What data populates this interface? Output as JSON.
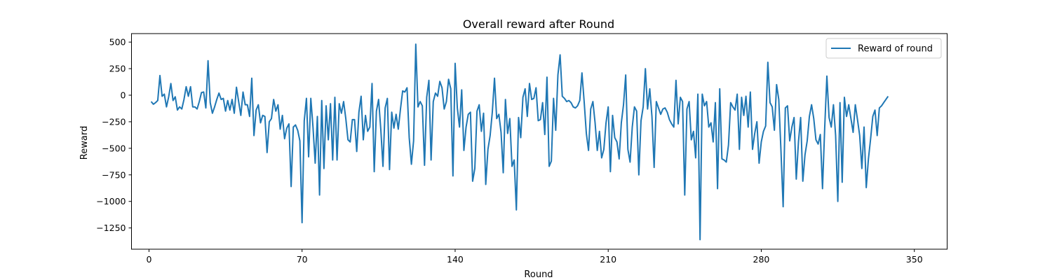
{
  "chart_data": {
    "type": "line",
    "title": "Overall reward after Round",
    "xlabel": "Round",
    "ylabel": "Reward",
    "xlim": [
      -8,
      365
    ],
    "ylim": [
      -1450,
      580
    ],
    "xticks": [
      0,
      70,
      140,
      210,
      280,
      350
    ],
    "yticks": [
      500,
      250,
      0,
      -250,
      -500,
      -750,
      -1000,
      -1250
    ],
    "ytick_labels": [
      "500",
      "250",
      "0",
      "−250",
      "−500",
      "−750",
      "−1000",
      "−1250"
    ],
    "legend": {
      "position": "upper-right",
      "entries": [
        "Reward of round"
      ]
    },
    "grid": false,
    "series": [
      {
        "name": "Reward of round",
        "color": "#1f77b4",
        "x_start": 1,
        "values": [
          -60,
          -85,
          -70,
          -50,
          185,
          -10,
          10,
          -110,
          -15,
          110,
          -50,
          -15,
          -140,
          -110,
          -130,
          -40,
          80,
          -10,
          80,
          -110,
          -110,
          -130,
          -60,
          25,
          30,
          -120,
          325,
          -70,
          -170,
          -110,
          -40,
          20,
          -40,
          -30,
          -150,
          -50,
          -140,
          -40,
          -170,
          75,
          -60,
          -190,
          30,
          -90,
          -90,
          -200,
          160,
          -380,
          -140,
          -90,
          -260,
          -190,
          -200,
          -540,
          -250,
          -220,
          -40,
          -150,
          -90,
          -320,
          -190,
          -410,
          -310,
          -270,
          -860,
          -300,
          -280,
          -330,
          -430,
          -1200,
          -240,
          -30,
          -580,
          -30,
          -300,
          -640,
          -200,
          -940,
          -50,
          -690,
          -100,
          -420,
          -80,
          -610,
          -20,
          -610,
          -80,
          -170,
          -60,
          -220,
          -420,
          -440,
          -230,
          -230,
          -530,
          -160,
          -10,
          -420,
          -190,
          -340,
          -300,
          110,
          -720,
          -150,
          -40,
          -320,
          -670,
          -120,
          -30,
          -700,
          -160,
          -310,
          -180,
          -320,
          -130,
          40,
          30,
          70,
          -400,
          -650,
          -430,
          480,
          -110,
          -60,
          -100,
          -660,
          -20,
          140,
          -610,
          -60,
          20,
          -10,
          130,
          70,
          -130,
          -60,
          150,
          60,
          -760,
          300,
          -120,
          -300,
          50,
          -520,
          -300,
          -180,
          -160,
          -810,
          -690,
          -150,
          -90,
          -340,
          -170,
          -840,
          -510,
          -380,
          -160,
          160,
          -220,
          -180,
          -350,
          -730,
          -40,
          -360,
          -220,
          -670,
          -610,
          -1080,
          -210,
          -400,
          -20,
          60,
          -200,
          110,
          -40,
          -30,
          70,
          -240,
          -230,
          -70,
          -370,
          170,
          -670,
          -620,
          -30,
          -330,
          190,
          380,
          -10,
          -30,
          -60,
          -50,
          -70,
          -110,
          -120,
          -100,
          -50,
          210,
          -60,
          -360,
          -520,
          -130,
          -60,
          -260,
          -520,
          -340,
          -590,
          -510,
          -260,
          -110,
          -720,
          -190,
          -400,
          -440,
          -600,
          -260,
          -90,
          190,
          -510,
          -630,
          -300,
          -110,
          -150,
          -750,
          -240,
          -110,
          250,
          -130,
          60,
          -200,
          -680,
          -60,
          -120,
          -180,
          -130,
          -120,
          -160,
          -230,
          -270,
          -300,
          140,
          -270,
          -20,
          -60,
          -940,
          -130,
          -60,
          -420,
          -340,
          -590,
          10,
          -1360,
          10,
          -100,
          -60,
          -300,
          -260,
          -440,
          -70,
          -880,
          60,
          -600,
          -610,
          -630,
          -470,
          -70,
          -110,
          -140,
          10,
          -510,
          -20,
          -190,
          -10,
          -300,
          30,
          -510,
          -360,
          -250,
          -640,
          -440,
          -340,
          -290,
          310,
          -70,
          -110,
          -330,
          100,
          -40,
          -520,
          -1050,
          -120,
          -100,
          -430,
          -300,
          -210,
          -790,
          -440,
          -210,
          -810,
          -560,
          -430,
          -200,
          -90,
          -220,
          -420,
          -460,
          -370,
          -880,
          -310,
          180,
          -210,
          -300,
          -90,
          -380,
          -1000,
          -70,
          -820,
          -20,
          -200,
          -90,
          -220,
          -350,
          -90,
          -230,
          -380,
          -690,
          -300,
          -870,
          -600,
          -410,
          -200,
          -140,
          -380,
          -120,
          -100,
          -70,
          -40,
          -10
        ]
      }
    ]
  }
}
